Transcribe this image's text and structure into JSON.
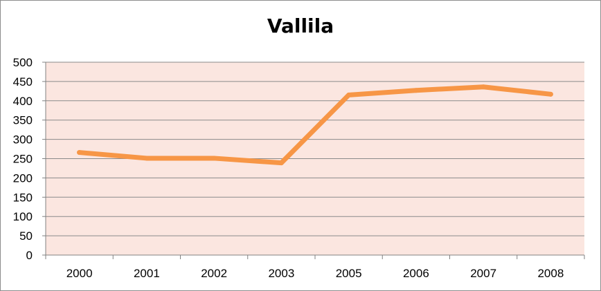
{
  "chart_data": {
    "type": "line",
    "title": "Vallila",
    "xlabel": "",
    "ylabel": "",
    "categories": [
      "2000",
      "2001",
      "2002",
      "2003",
      "2005",
      "2006",
      "2007",
      "2008"
    ],
    "series": [
      {
        "values": [
          266,
          251,
          251,
          239,
          415,
          427,
          436,
          417
        ],
        "color": "#f79646"
      }
    ],
    "ylim": [
      0,
      500
    ],
    "yticks": [
      0,
      50,
      100,
      150,
      200,
      250,
      300,
      350,
      400,
      450,
      500
    ],
    "grid": true,
    "legend": "none",
    "plot_background": "#fbe6e0",
    "gridline_color": "#8a8a8a"
  }
}
